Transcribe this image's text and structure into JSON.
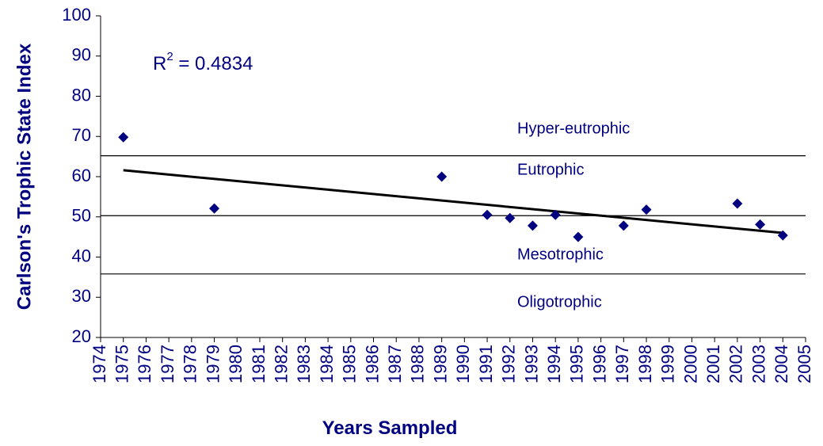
{
  "chart_data": {
    "type": "scatter",
    "x_label": "Years Sampled",
    "y_label": "Carlson's Trophic State Index",
    "annotation": {
      "base": "R",
      "sup": "2",
      "rest": " = 0.4834"
    },
    "x": [
      1975,
      1979,
      1989,
      1991,
      1992,
      1993,
      1994,
      1995,
      1997,
      1998,
      2002,
      2003,
      2004
    ],
    "values": [
      69.8,
      52.1,
      60,
      50.5,
      49.7,
      47.8,
      50.5,
      45,
      47.8,
      51.8,
      53.3,
      48.1,
      45.4
    ],
    "color": "#000080",
    "trendline": {
      "x": [
        1975,
        2004
      ],
      "values": [
        61.6,
        46.0
      ],
      "color": "#000000"
    },
    "reference_lines": [
      65.2,
      50.3,
      35.8
    ],
    "zones": [
      "Hyper-eutrophic",
      "Eutrophic",
      "Mesotrophic",
      "Oligotrophic"
    ],
    "xlim": [
      1974,
      2005
    ],
    "xticks": [
      1974,
      1975,
      1976,
      1977,
      1978,
      1979,
      1980,
      1981,
      1982,
      1983,
      1984,
      1985,
      1986,
      1987,
      1988,
      1989,
      1990,
      1991,
      1992,
      1993,
      1994,
      1995,
      1996,
      1997,
      1998,
      1999,
      2000,
      2001,
      2002,
      2003,
      2004,
      2005
    ],
    "ylim": [
      20,
      100
    ],
    "yticks": [
      20,
      30,
      40,
      50,
      60,
      70,
      80,
      90,
      100
    ]
  }
}
